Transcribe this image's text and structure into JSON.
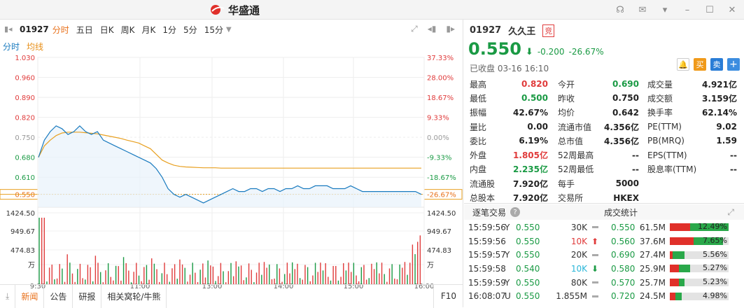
{
  "app": {
    "name": "华盛通"
  },
  "toolbar": {
    "code": "01927",
    "tabs": [
      "分时",
      "五日",
      "日K",
      "周K",
      "月K",
      "1分",
      "5分",
      "15分"
    ]
  },
  "subtabs": {
    "intraday": "分时",
    "avg": "均线"
  },
  "chart_data": {
    "type": "line",
    "yticks_left": [
      "1.030",
      "0.960",
      "0.890",
      "0.820",
      "0.750",
      "0.680",
      "0.610",
      "0.550"
    ],
    "yticks_right": [
      "37.33%",
      "28.00%",
      "18.67%",
      "9.33%",
      "0.00%",
      "-9.33%",
      "-18.67%",
      "-26.67%"
    ],
    "vol_ticks": [
      "1424.50",
      "949.67",
      "474.83",
      "万"
    ],
    "xticks": [
      "9:30",
      "11:00",
      "13:00",
      "14:00",
      "15:00",
      "16:00"
    ],
    "prev_close": 0.75,
    "last": 0.55,
    "series": [
      {
        "values": [
          0.68,
          0.74,
          0.77,
          0.79,
          0.78,
          0.76,
          0.77,
          0.79,
          0.77,
          0.76,
          0.77,
          0.74,
          0.73,
          0.72,
          0.71,
          0.7,
          0.69,
          0.68,
          0.67,
          0.66,
          0.64,
          0.61,
          0.57,
          0.55,
          0.54,
          0.55,
          0.54,
          0.53,
          0.52,
          0.53,
          0.54,
          0.55,
          0.56,
          0.57,
          0.56,
          0.56,
          0.57,
          0.57,
          0.56,
          0.57,
          0.57,
          0.56,
          0.57,
          0.57,
          0.58,
          0.57,
          0.57,
          0.58,
          0.58,
          0.58,
          0.57,
          0.57,
          0.57,
          0.58,
          0.57,
          0.56,
          0.56,
          0.56,
          0.56,
          0.56,
          0.56,
          0.56,
          0.56,
          0.56,
          0.56,
          0.55
        ]
      },
      {
        "values": [
          0.68,
          0.72,
          0.74,
          0.756,
          0.765,
          0.768,
          0.768,
          0.768,
          0.766,
          0.764,
          0.762,
          0.758,
          0.754,
          0.75,
          0.746,
          0.74,
          0.735,
          0.73,
          0.72,
          0.71,
          0.69,
          0.67,
          0.66,
          0.652,
          0.648,
          0.646,
          0.645,
          0.644,
          0.643,
          0.643,
          0.643,
          0.642,
          0.642,
          0.642,
          0.642,
          0.642,
          0.642,
          0.642,
          0.642,
          0.642,
          0.642,
          0.642,
          0.642,
          0.642,
          0.642,
          0.642,
          0.642,
          0.642,
          0.642,
          0.642,
          0.642,
          0.642,
          0.642,
          0.642,
          0.642,
          0.642,
          0.642,
          0.642,
          0.642,
          0.642,
          0.642,
          0.642,
          0.642,
          0.642,
          0.642,
          0.642
        ]
      }
    ]
  },
  "bottom": {
    "tabs": [
      "新闻",
      "公告",
      "研报",
      "相关窝轮/牛熊"
    ],
    "right": "F10"
  },
  "stock": {
    "code": "01927",
    "name": "久久王",
    "badge": "竞",
    "price": "0.550",
    "change": "-0.200",
    "pct": "-26.67%",
    "status": "已收盘 03-16 16:10",
    "btn_buy": "买",
    "btn_sell": "卖"
  },
  "quotes": [
    [
      {
        "l": "最高",
        "v": "0.820",
        "c": "red"
      },
      {
        "l": "今开",
        "v": "0.690",
        "c": "green"
      },
      {
        "l": "成交量",
        "v": "4.921亿",
        "c": ""
      }
    ],
    [
      {
        "l": "最低",
        "v": "0.500",
        "c": "green"
      },
      {
        "l": "昨收",
        "v": "0.750",
        "c": ""
      },
      {
        "l": "成交额",
        "v": "3.159亿",
        "c": ""
      }
    ],
    [
      {
        "l": "振幅",
        "v": "42.67%",
        "c": ""
      },
      {
        "l": "均价",
        "v": "0.642",
        "c": ""
      },
      {
        "l": "换手率",
        "v": "62.14%",
        "c": ""
      }
    ],
    [
      {
        "l": "量比",
        "v": "0.00",
        "c": ""
      },
      {
        "l": "流通市值",
        "v": "4.356亿",
        "c": ""
      },
      {
        "l": "PE(TTM)",
        "v": "9.02",
        "c": ""
      }
    ],
    [
      {
        "l": "委比",
        "v": "6.19%",
        "c": ""
      },
      {
        "l": "总市值",
        "v": "4.356亿",
        "c": ""
      },
      {
        "l": "PB(MRQ)",
        "v": "1.59",
        "c": ""
      }
    ],
    [
      {
        "l": "外盘",
        "v": "1.805亿",
        "c": "red"
      },
      {
        "l": "52周最高",
        "v": "--",
        "c": ""
      },
      {
        "l": "EPS(TTM)",
        "v": "--",
        "c": ""
      }
    ],
    [
      {
        "l": "内盘",
        "v": "2.235亿",
        "c": "green"
      },
      {
        "l": "52周最低",
        "v": "--",
        "c": ""
      },
      {
        "l": "股息率(TTM)",
        "v": "--",
        "c": ""
      }
    ],
    [
      {
        "l": "流通股",
        "v": "7.920亿",
        "c": ""
      },
      {
        "l": "每手",
        "v": "5000",
        "c": ""
      },
      {
        "l": "",
        "v": "",
        "c": ""
      }
    ],
    [
      {
        "l": "总股本",
        "v": "7.920亿",
        "c": ""
      },
      {
        "l": "交易所",
        "v": "HKEX",
        "c": ""
      },
      {
        "l": "",
        "v": "",
        "c": ""
      }
    ]
  ],
  "trades_hdr": {
    "left": "逐笔交易",
    "right": "成交统计"
  },
  "trades": [
    {
      "t": "15:59:56",
      "s": "Y",
      "p": "0.550",
      "pc": "green",
      "v": "30K",
      "vc": "",
      "ind": "eq"
    },
    {
      "t": "15:59:56",
      "s": "",
      "p": "0.550",
      "pc": "green",
      "v": "10K",
      "vc": "red",
      "ind": "up"
    },
    {
      "t": "15:59:57",
      "s": "Y",
      "p": "0.550",
      "pc": "green",
      "v": "20K",
      "vc": "",
      "ind": "eq"
    },
    {
      "t": "15:59:58",
      "s": "",
      "p": "0.540",
      "pc": "green",
      "v": "10K",
      "vc": "cyan",
      "ind": "down"
    },
    {
      "t": "15:59:59",
      "s": "Y",
      "p": "0.550",
      "pc": "green",
      "v": "80K",
      "vc": "",
      "ind": "eq"
    },
    {
      "t": "16:08:07",
      "s": "U",
      "p": "0.550",
      "pc": "green",
      "v": "1.855M",
      "vc": "",
      "ind": "eq"
    }
  ],
  "stats": [
    {
      "p": "0.550",
      "v": "61.5M",
      "pct": "12.49%",
      "red": 0.35,
      "green": 0.65
    },
    {
      "p": "0.560",
      "v": "37.6M",
      "pct": "7.65%",
      "red": 0.4,
      "green": 0.5
    },
    {
      "p": "0.690",
      "v": "27.4M",
      "pct": "5.56%",
      "red": 0.05,
      "green": 0.2
    },
    {
      "p": "0.580",
      "v": "25.9M",
      "pct": "5.27%",
      "red": 0.15,
      "green": 0.2
    },
    {
      "p": "0.570",
      "v": "25.7M",
      "pct": "5.23%",
      "red": 0.15,
      "green": 0.1
    },
    {
      "p": "0.720",
      "v": "24.5M",
      "pct": "4.98%",
      "red": 0.1,
      "green": 0.1
    }
  ]
}
